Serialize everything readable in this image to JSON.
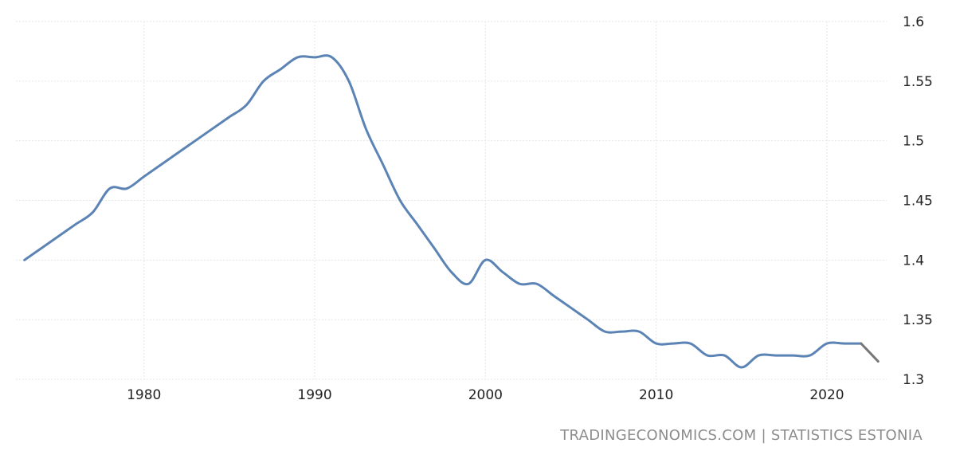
{
  "source": "TRADINGECONOMICS.COM | STATISTICS ESTONIA",
  "colors": {
    "series_main": "#5b84b5",
    "series_forecast": "#777777",
    "grid": "#e6e6e6",
    "tick_text": "#222222",
    "source_text": "#8c8c8c"
  },
  "chart_data": {
    "type": "line",
    "title": "",
    "xlabel": "",
    "ylabel": "",
    "xlim": [
      1972.5,
      2023.5
    ],
    "ylim": [
      1.3,
      1.6
    ],
    "grid": true,
    "y_axis_position": "right",
    "x_ticks": [
      "1980",
      "1990",
      "2000",
      "2010",
      "2020"
    ],
    "y_ticks": [
      "1.6",
      "1.55",
      "1.5",
      "1.45",
      "1.4",
      "1.35",
      "1.3"
    ],
    "series": [
      {
        "x": [
          1973,
          1974,
          1975,
          1976,
          1977,
          1978,
          1979,
          1980,
          1981,
          1982,
          1983,
          1984,
          1985,
          1986,
          1987,
          1988,
          1989,
          1990,
          1991,
          1992,
          1993,
          1994,
          1995,
          1996,
          1997,
          1998,
          1999,
          2000,
          2001,
          2002,
          2003,
          2004,
          2005,
          2006,
          2007,
          2008,
          2009,
          2010,
          2011,
          2012,
          2013,
          2014,
          2015,
          2016,
          2017,
          2018,
          2019,
          2020,
          2021,
          2022
        ],
        "values": [
          1.4,
          1.41,
          1.42,
          1.43,
          1.44,
          1.46,
          1.46,
          1.47,
          1.48,
          1.49,
          1.5,
          1.51,
          1.52,
          1.53,
          1.55,
          1.56,
          1.57,
          1.57,
          1.57,
          1.55,
          1.51,
          1.48,
          1.45,
          1.43,
          1.41,
          1.39,
          1.38,
          1.4,
          1.39,
          1.38,
          1.38,
          1.37,
          1.36,
          1.35,
          1.34,
          1.34,
          1.34,
          1.33,
          1.33,
          1.33,
          1.32,
          1.32,
          1.31,
          1.32,
          1.32,
          1.32,
          1.32,
          1.33,
          1.33,
          1.33
        ]
      },
      {
        "x": [
          2022,
          2023
        ],
        "values": [
          1.33,
          1.315
        ]
      }
    ]
  }
}
